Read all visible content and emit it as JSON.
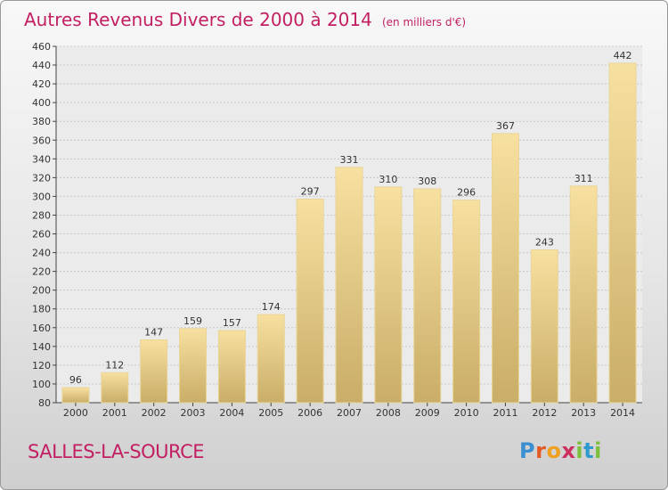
{
  "title": "Autres Revenus Divers de 2000 à 2014",
  "subtitle": "(en milliers d'€)",
  "place": "SALLES-LA-SOURCE",
  "brand": [
    "P",
    "r",
    "o",
    "x",
    "i",
    "t",
    "i"
  ],
  "colors": {
    "title": "#c21f63",
    "bar_light": "#f7e0a0",
    "bar_dark": "#c9ad68",
    "grid": "#c8c8c8"
  },
  "chart_data": {
    "type": "bar",
    "title": "Autres Revenus Divers de 2000 à 2014",
    "subtitle": "(en milliers d'€)",
    "categories": [
      "2000",
      "2001",
      "2002",
      "2003",
      "2004",
      "2005",
      "2006",
      "2007",
      "2008",
      "2009",
      "2010",
      "2011",
      "2012",
      "2013",
      "2014"
    ],
    "values": [
      96,
      112,
      147,
      159,
      157,
      174,
      297,
      331,
      310,
      308,
      296,
      367,
      243,
      311,
      442
    ],
    "ylim": [
      80,
      460
    ],
    "yticks": [
      80,
      100,
      120,
      140,
      160,
      180,
      200,
      220,
      240,
      260,
      280,
      300,
      320,
      340,
      360,
      380,
      400,
      420,
      440,
      460
    ],
    "grid": true,
    "data_labels": true
  }
}
